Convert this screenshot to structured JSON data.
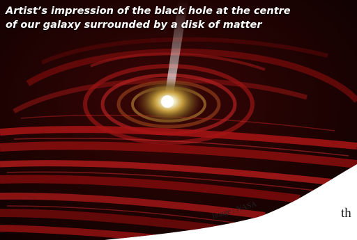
{
  "caption": "Artist’s impression of the black hole at the centre\nof our galaxy surrounded by a disk of matter",
  "credit": "Image : NASA",
  "page_text_fragment": "th",
  "colors": {
    "caption_text": "#ffffff",
    "disk_red": "#9a1010",
    "disk_dark": "#1a0202",
    "core_glow": "#f5f0c8",
    "page_background": "#ffffff"
  }
}
